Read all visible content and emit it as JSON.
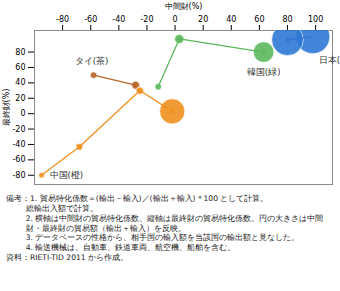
{
  "chart_data": {
    "type": "scatter",
    "xlabel": "中間財(%)",
    "ylabel": "最終財(%)",
    "xlim": [
      -100,
      112
    ],
    "ylim": [
      -92,
      108
    ],
    "xticks": [
      -80,
      -60,
      -40,
      -20,
      0,
      20,
      40,
      60,
      80,
      100
    ],
    "yticks": [
      -80,
      -60,
      -40,
      -20,
      0,
      20,
      40,
      60,
      80
    ],
    "grid": false,
    "marker": "arrow",
    "series": [
      {
        "name": "日本(青)",
        "color": "#2f78d4",
        "x": [
          98,
          80
        ],
        "y": [
          100,
          96
        ],
        "size": [
          110,
          95
        ]
      },
      {
        "name": "韓国(緑)",
        "color": "#5cb85c",
        "x": [
          -12,
          3,
          63
        ],
        "y": [
          35,
          97,
          80
        ],
        "size": [
          4,
          8,
          40
        ]
      },
      {
        "name": "タイ(茶)",
        "color": "#b8662a",
        "x": [
          -58,
          -28
        ],
        "y": [
          50,
          37
        ],
        "size": [
          4,
          6
        ]
      },
      {
        "name": "中国(橙)",
        "color": "#f0901e",
        "x": [
          -95,
          -68,
          -25,
          -2
        ],
        "y": [
          -80,
          -43,
          30,
          3
        ],
        "size": [
          3,
          4,
          5,
          60
        ]
      }
    ],
    "notes": [
      "備考：1. 貿易特化係数＝(輸出－輸入)／(輸出＋輸入)＊100 として計算。",
      "総輸出入額で計算。",
      "2. 横軸は中間財の貿易特化係数、縦軸は最終財の貿易特化係数。円の大きさは中間財・最終財の貿易額（輸出＋輸入）を反映。",
      "3. データベースの性格から、相手国の輸入額を当該国の輸出額と見なした。",
      "4. 輸送機械は、自動車、鉄道車両、航空機、船舶を含む。"
    ],
    "source": "資料：RIETI-TID 2011 から作成。"
  }
}
